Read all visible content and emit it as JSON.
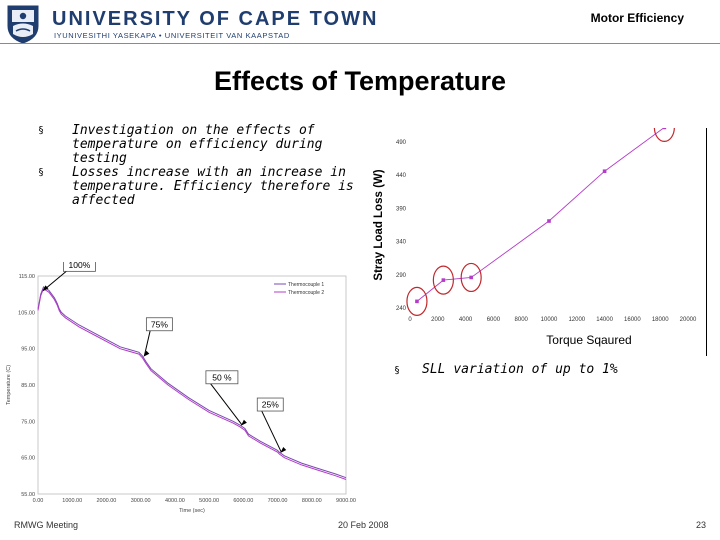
{
  "header": {
    "university_name": "UNIVERSITY OF CAPE TOWN",
    "university_subtitle": "IYUNIVESITHI YASEKAPA • UNIVERSITEIT VAN KAAPSTAD",
    "section_title": "Motor Efficiency"
  },
  "slide": {
    "title": "Effects of Temperature",
    "bullets": [
      {
        "mark": "§",
        "text": "Investigation on the effects of temperature on efficiency during testing"
      },
      {
        "mark": "§",
        "text": "Losses increase with an increase in temperature. Efficiency therefore is affected"
      }
    ],
    "sll_note": {
      "mark": "§",
      "text": "SLL variation of up to 1%"
    }
  },
  "footer": {
    "left": "RMWG Meeting",
    "center": "20 Feb 2008",
    "right": "23"
  },
  "colors": {
    "uct_blue": "#1f3d6e",
    "series_magenta": "#b43cc8",
    "circle_red": "#c0282c"
  },
  "chart_data": [
    {
      "type": "line",
      "title": "",
      "xlabel": "Time (sec)",
      "ylabel": "Temperature (C)",
      "xlim": [
        0,
        9000
      ],
      "ylim": [
        55,
        115
      ],
      "x_ticks": [
        "0.00",
        "1000.00",
        "2000.00",
        "3000.00",
        "4000.00",
        "5000.00",
        "6000.00",
        "7000.00",
        "8000.00",
        "9000.00"
      ],
      "y_ticks": [
        "55.00",
        "65.00",
        "75.00",
        "85.00",
        "95.00",
        "105.00",
        "115.00"
      ],
      "legend": [
        "Thermocouple 1",
        "Thermocouple 2"
      ],
      "legend_position": "top-right",
      "series": [
        {
          "name": "Thermocouple 1",
          "x": [
            0,
            80,
            160,
            320,
            480,
            560,
            620,
            680,
            800,
            1200,
            1700,
            2400,
            2950,
            3050,
            3150,
            3300,
            3800,
            4400,
            5000,
            5700,
            5900,
            6050,
            6150,
            6500,
            7000,
            7050,
            7200,
            7700,
            8200,
            8700,
            9000
          ],
          "y": [
            106,
            110,
            112,
            111,
            109,
            107.5,
            106,
            105,
            104,
            101.5,
            99,
            95.5,
            94,
            93,
            91.5,
            89.5,
            85.5,
            81.5,
            78,
            75,
            74,
            73,
            71.5,
            69.5,
            67,
            66.5,
            65.5,
            63.5,
            62,
            60.5,
            59.5
          ]
        },
        {
          "name": "Thermocouple 2",
          "x": [
            0,
            80,
            160,
            320,
            480,
            560,
            620,
            680,
            800,
            1200,
            1700,
            2400,
            2950,
            3050,
            3150,
            3300,
            3800,
            4400,
            5000,
            5700,
            5900,
            6050,
            6150,
            6500,
            7000,
            7050,
            7200,
            7700,
            8200,
            8700,
            9000
          ],
          "y": [
            105.5,
            109.5,
            111.5,
            110.5,
            108.5,
            107,
            105.5,
            104.5,
            103.5,
            101,
            98.5,
            95,
            93.5,
            92.5,
            91,
            89,
            85,
            81,
            77.5,
            74.5,
            73.5,
            72.5,
            71,
            69,
            66.5,
            66,
            65,
            63,
            61.5,
            60,
            59
          ]
        }
      ],
      "annotations": [
        {
          "text": "100%",
          "x": 100,
          "y": 110.5
        },
        {
          "text": "75%",
          "x": 3050,
          "y": 92.5
        },
        {
          "text": "50 %",
          "x": 5900,
          "y": 73.5
        },
        {
          "text": "25%",
          "x": 7050,
          "y": 66
        }
      ]
    },
    {
      "type": "line",
      "title": "",
      "xlabel": "Torque Sqaured",
      "ylabel": "Stray Load Loss (W)",
      "xlim": [
        0,
        20000
      ],
      "ylim": [
        240,
        490
      ],
      "x_ticks": [
        "0",
        "2000",
        "4000",
        "6000",
        "8000",
        "10000",
        "12000",
        "14000",
        "16000",
        "18000",
        "20000"
      ],
      "y_ticks": [
        "240",
        "290",
        "340",
        "390",
        "440",
        "490"
      ],
      "series": [
        {
          "name": "Stray Load Loss",
          "x": [
            500,
            2400,
            4400,
            10000,
            14000,
            18300
          ],
          "y": [
            250,
            282,
            286,
            371,
            446,
            512
          ]
        }
      ],
      "highlighted_points": [
        0,
        1,
        2,
        5
      ]
    }
  ]
}
